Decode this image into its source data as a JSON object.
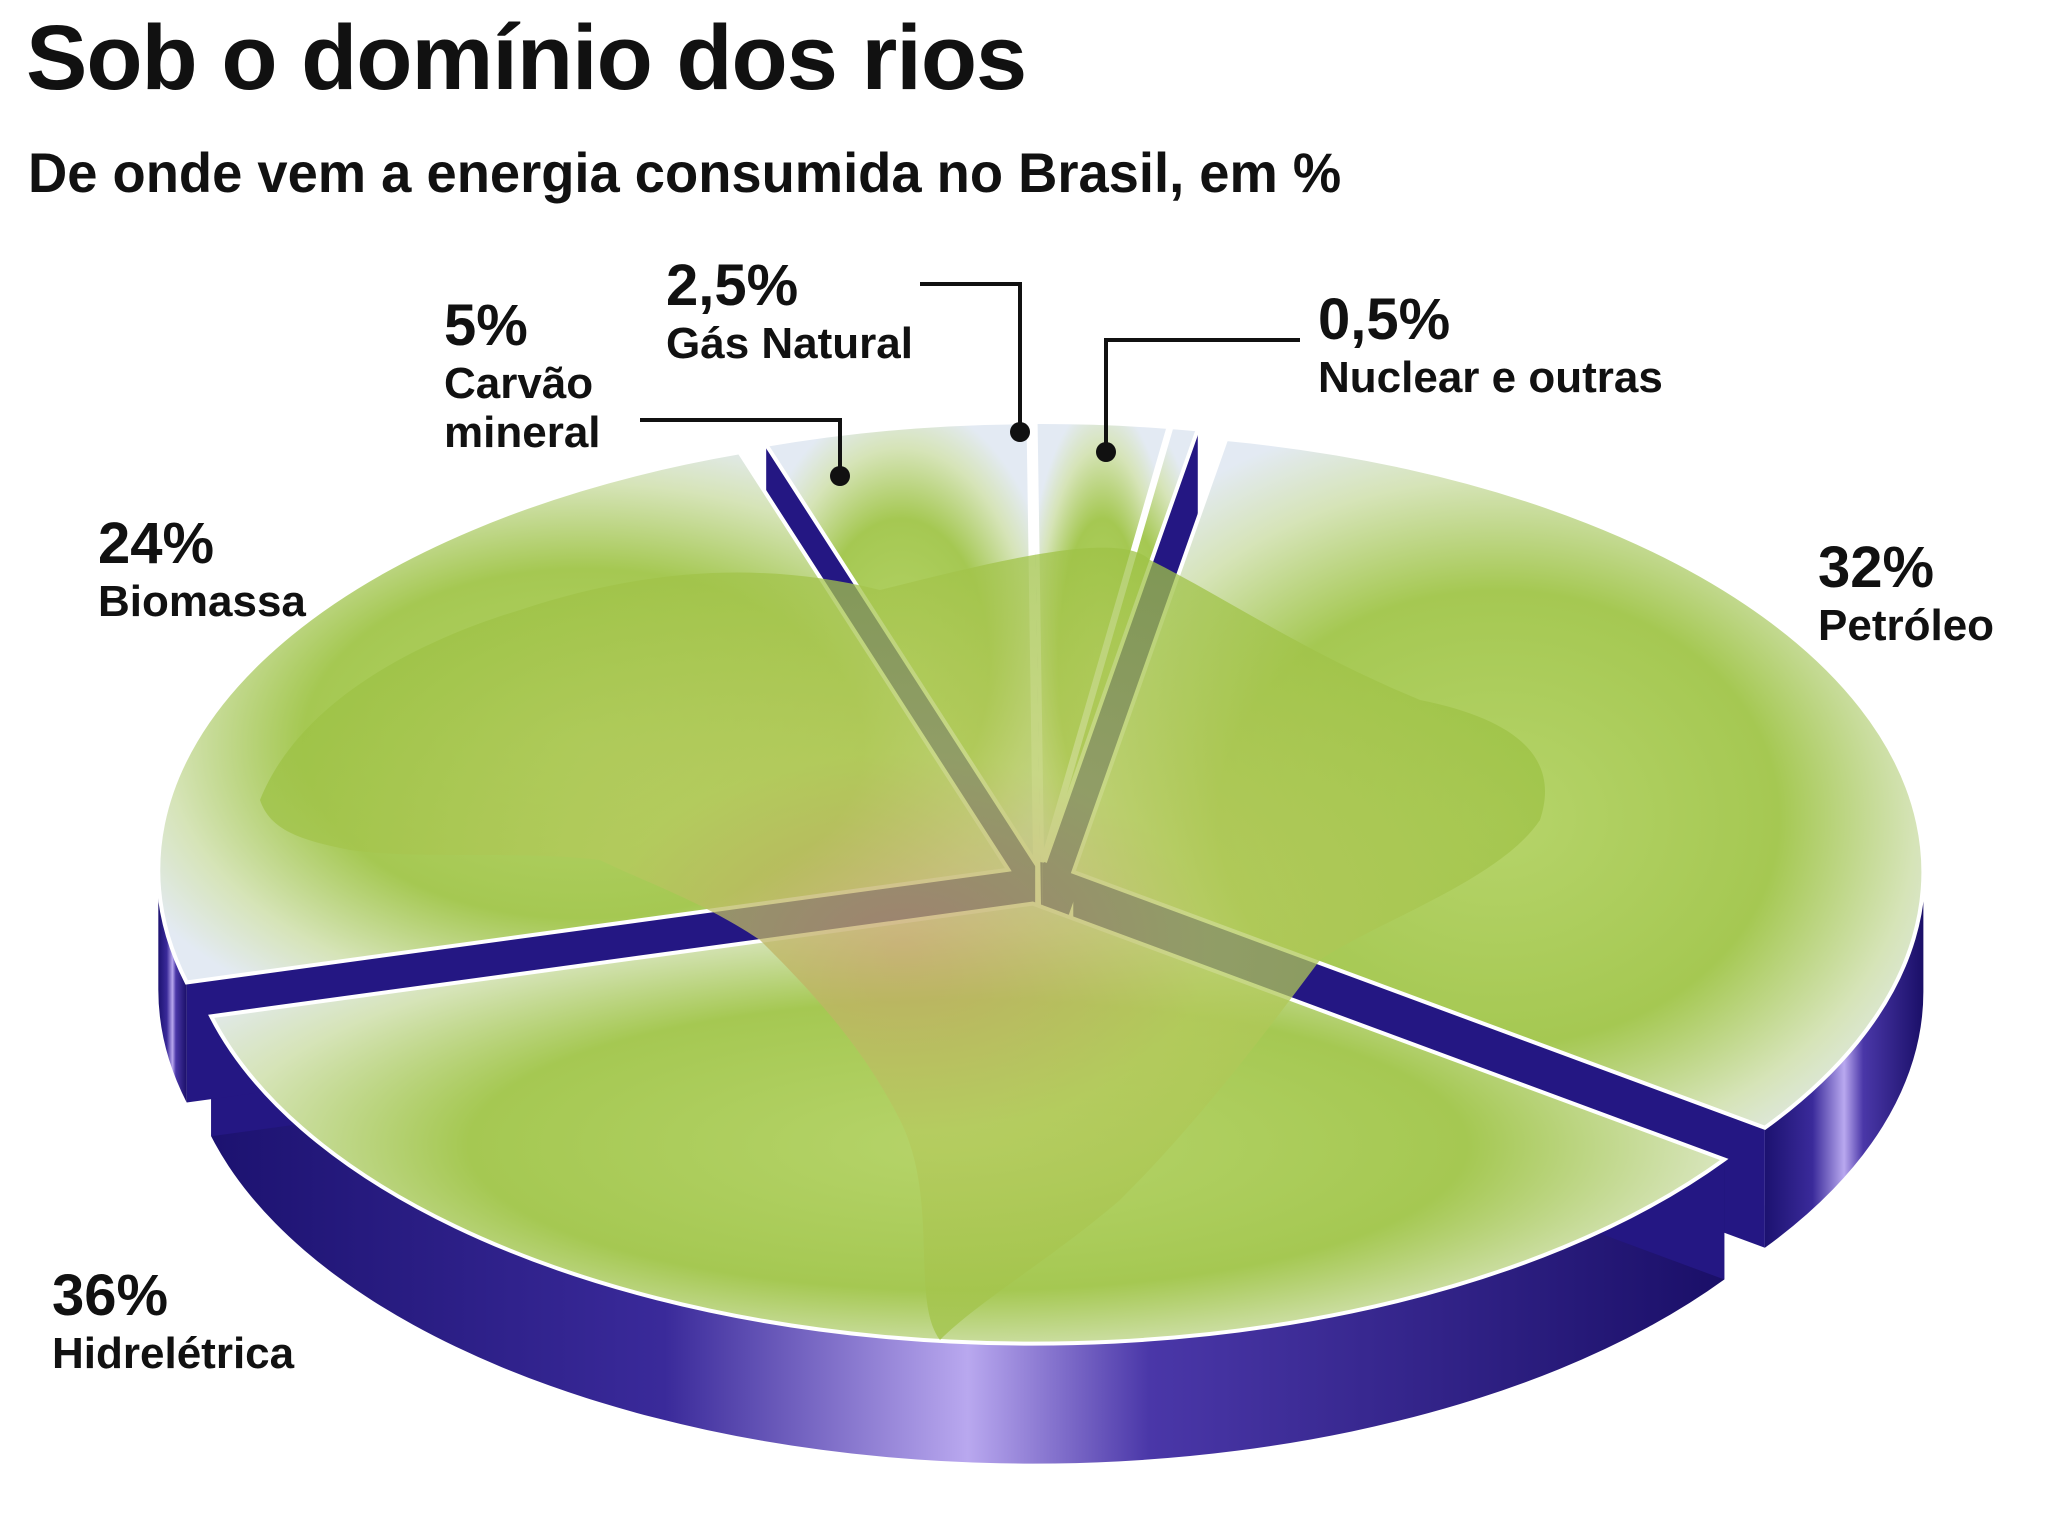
{
  "chart_data": {
    "type": "pie",
    "title": "Sob o domínio dos rios",
    "subtitle": "De onde vem a energia consumida no Brasil, em %",
    "slices": [
      {
        "label": "Petróleo",
        "value": 32,
        "display": "32%"
      },
      {
        "label": "Hidrelétrica",
        "value": 36,
        "display": "36%"
      },
      {
        "label": "Biomassa",
        "value": 24,
        "display": "24%"
      },
      {
        "label": "Carvão mineral",
        "value": 5,
        "display": "5%"
      },
      {
        "label": "Gás Natural",
        "value": 2.5,
        "display": "2,5%"
      },
      {
        "label": "Nuclear e outras",
        "value": 0.5,
        "display": "0,5%"
      }
    ],
    "legend": "none",
    "style": "3d exploded pie with map of Brazil on top"
  },
  "colors": {
    "side": "#2a1b86",
    "side_highlight": "#b8a6ee",
    "land": "#a3c84e",
    "land_light": "#cbe07e",
    "sea": "#dde6f1",
    "text": "#111111"
  }
}
